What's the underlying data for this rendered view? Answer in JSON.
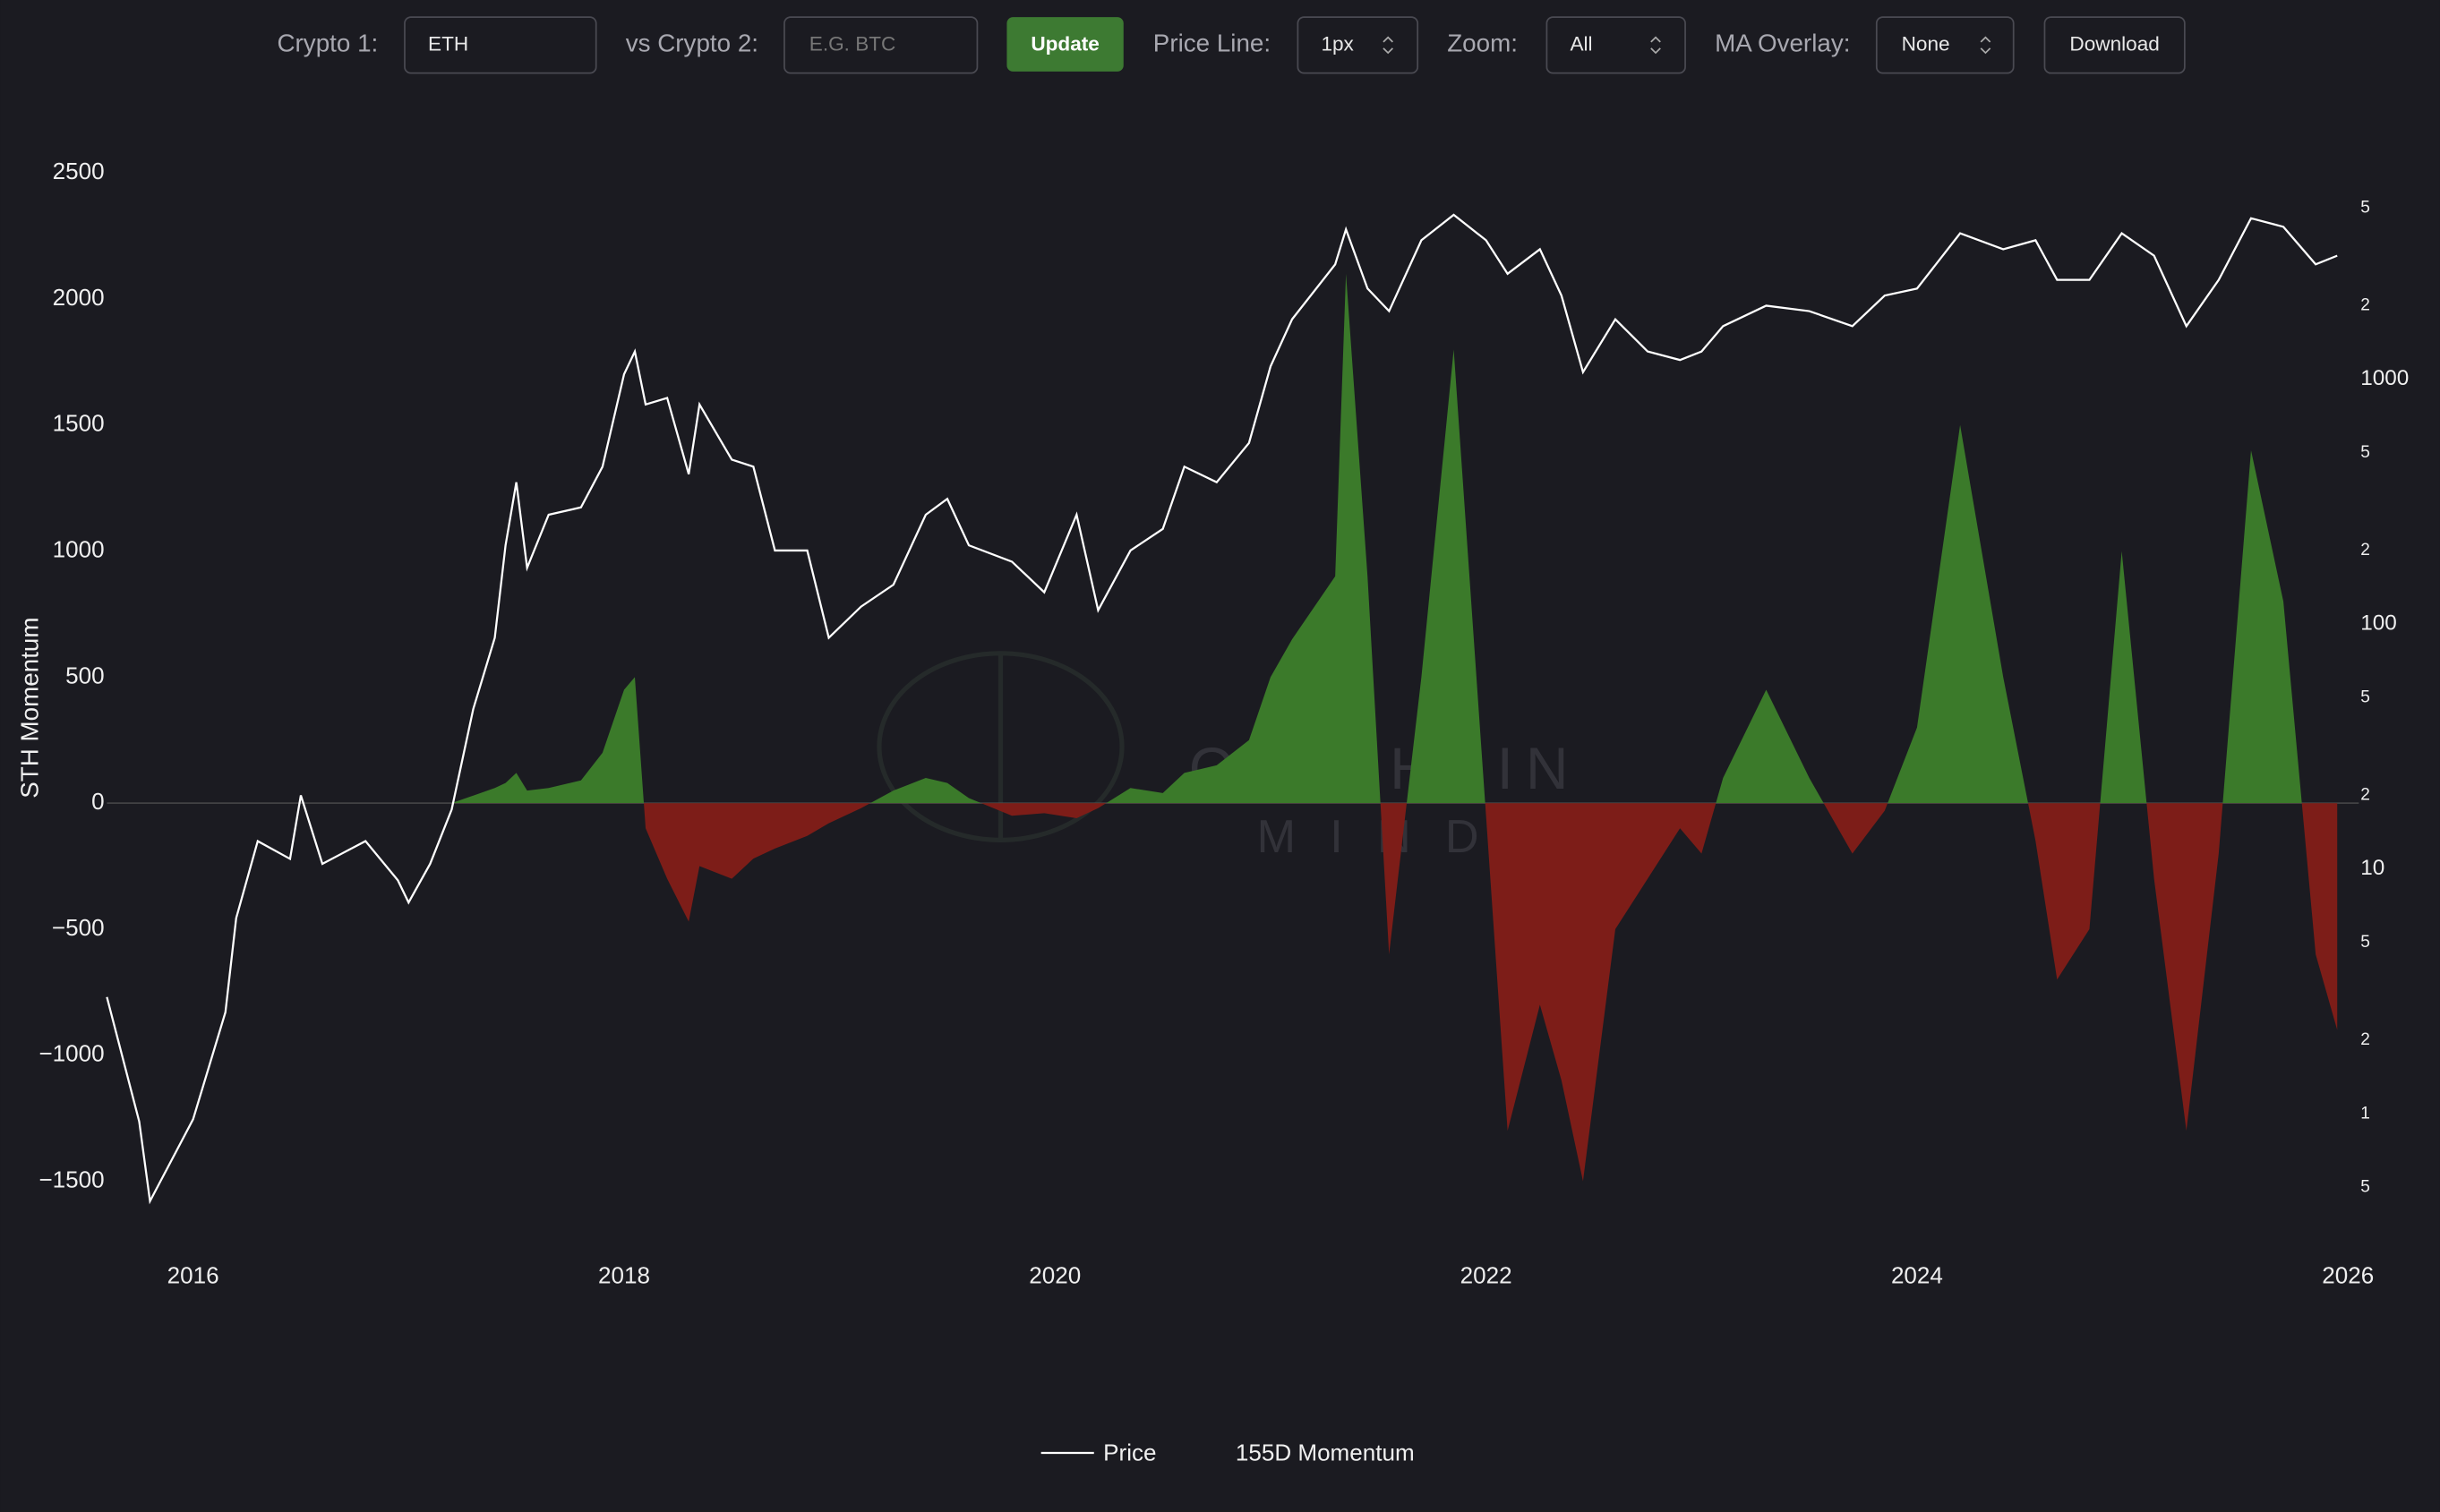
{
  "toolbar": {
    "crypto1_label": "Crypto 1:",
    "crypto1_value": "ETH",
    "crypto2_label": "vs Crypto 2:",
    "crypto2_placeholder": "E.G. BTC",
    "update": "Update",
    "price_line_label": "Price Line:",
    "price_line_value": "1px",
    "zoom_label": "Zoom:",
    "zoom_value": "All",
    "ma_label": "MA Overlay:",
    "ma_value": "None",
    "download": "Download"
  },
  "chart_data": {
    "type": "line",
    "ylabel": "STH Momentum",
    "watermark": [
      "ON-CHAIN",
      "MIND"
    ],
    "x": [
      2015.6,
      2015.75,
      2015.8,
      2016.0,
      2016.15,
      2016.2,
      2016.3,
      2016.45,
      2016.5,
      2016.6,
      2016.8,
      2016.95,
      2017.0,
      2017.1,
      2017.2,
      2017.3,
      2017.4,
      2017.45,
      2017.5,
      2017.55,
      2017.65,
      2017.8,
      2017.9,
      2018.0,
      2018.05,
      2018.1,
      2018.2,
      2018.3,
      2018.35,
      2018.5,
      2018.6,
      2018.7,
      2018.85,
      2018.95,
      2019.1,
      2019.25,
      2019.4,
      2019.5,
      2019.6,
      2019.8,
      2019.95,
      2020.1,
      2020.2,
      2020.35,
      2020.5,
      2020.6,
      2020.75,
      2020.9,
      2021.0,
      2021.1,
      2021.3,
      2021.35,
      2021.45,
      2021.55,
      2021.7,
      2021.85,
      2022.0,
      2022.1,
      2022.25,
      2022.35,
      2022.45,
      2022.6,
      2022.75,
      2022.9,
      2023.0,
      2023.1,
      2023.3,
      2023.5,
      2023.7,
      2023.85,
      2024.0,
      2024.2,
      2024.4,
      2024.55,
      2024.65,
      2024.8,
      2024.95,
      2025.1,
      2025.25,
      2025.4,
      2025.55,
      2025.7,
      2025.85,
      2025.95
    ],
    "xlim": [
      2015.6,
      2026.05
    ],
    "xticks": [
      2016,
      2018,
      2020,
      2022,
      2024,
      2026
    ],
    "ylim": [
      -1720,
      2600
    ],
    "yticks": [
      2500,
      2000,
      1500,
      1000,
      500,
      0,
      {
        "value": -500,
        "label": "−500"
      },
      {
        "value": -1000,
        "label": "−1000"
      },
      {
        "value": -1500,
        "label": "−1500"
      }
    ],
    "y2log": true,
    "y2lim": [
      0.315,
      8830
    ],
    "y2ticks": [
      {
        "value": 5000,
        "label": "5"
      },
      {
        "value": 2000,
        "label": "2"
      },
      1000,
      {
        "value": 500,
        "label": "5"
      },
      {
        "value": 200,
        "label": "2"
      },
      100,
      {
        "value": 50,
        "label": "5"
      },
      {
        "value": 20,
        "label": "2"
      },
      10,
      5,
      2,
      1,
      {
        "value": 0.5,
        "label": "5"
      }
    ],
    "series": [
      {
        "name": "Price",
        "color": "#ffffff",
        "axis": "y2",
        "values": [
          3.0,
          0.93,
          0.44,
          0.95,
          2.6,
          6.3,
          13,
          11,
          20,
          10.5,
          13,
          9,
          7.3,
          10.5,
          17.5,
          45,
          88,
          210,
          380,
          170,
          280,
          300,
          440,
          1050,
          1300,
          790,
          840,
          410,
          790,
          470,
          440,
          200,
          200,
          88,
          118,
          145,
          280,
          325,
          210,
          180,
          135,
          280,
          114,
          200,
          245,
          440,
          380,
          550,
          1130,
          1760,
          2950,
          4100,
          2350,
          1900,
          3700,
          4700,
          3700,
          2700,
          3400,
          2200,
          1070,
          1760,
          1300,
          1200,
          1300,
          1650,
          2000,
          1900,
          1650,
          2200,
          2350,
          3950,
          3400,
          3700,
          2550,
          2550,
          3950,
          3200,
          1650,
          2550,
          4550,
          4200,
          2950,
          3200
        ]
      },
      {
        "name": "155D Momentum",
        "type": "area",
        "positive_color": "#3b7a2a",
        "negative_color": "#7d1d18",
        "values": [
          0,
          0,
          0,
          0,
          0,
          0,
          0,
          0,
          0,
          0,
          0,
          0,
          0,
          0,
          0,
          30,
          60,
          80,
          120,
          50,
          60,
          90,
          200,
          450,
          500,
          -100,
          -300,
          -470,
          -250,
          -300,
          -220,
          -180,
          -130,
          -80,
          -20,
          50,
          100,
          80,
          20,
          -50,
          -40,
          -60,
          -20,
          60,
          40,
          120,
          150,
          250,
          500,
          650,
          900,
          2100,
          900,
          -600,
          500,
          1800,
          -50,
          -1300,
          -800,
          -1100,
          -1500,
          -500,
          -300,
          -100,
          -200,
          100,
          450,
          100,
          -200,
          -30,
          300,
          1500,
          500,
          -150,
          -700,
          -500,
          1000,
          -300,
          -1300,
          -200,
          1400,
          800,
          -600,
          -900
        ]
      }
    ]
  }
}
